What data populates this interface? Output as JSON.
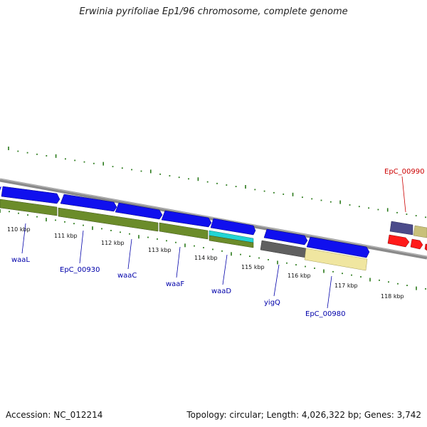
{
  "title": "Erwinia pyrifoliae Ep1/96 chromosome, complete genome",
  "footer": {
    "accession": "Accession: NC_012214",
    "summary": "Topology: circular; Length: 4,026,322 bp; Genes: 3,742"
  },
  "colors": {
    "gene_blue": "#1010ee",
    "gene_olive": "#6b8c2a",
    "gene_cyan": "#22d4d4",
    "gene_gray": "#606060",
    "gene_khaki": "#f0e6a0",
    "gene_red": "#ff1a1a",
    "gene_purple": "#4b4b8a",
    "label_blue": "#0000aa",
    "label_red": "#cc0000",
    "tick_green": "#2a7a1a"
  },
  "ruler": {
    "ticks": [
      {
        "label": "110 kbp"
      },
      {
        "label": "111 kbp"
      },
      {
        "label": "112 kbp"
      },
      {
        "label": "113 kbp"
      },
      {
        "label": "114 kbp"
      },
      {
        "label": "115 kbp"
      },
      {
        "label": "116 kbp"
      },
      {
        "label": "117 kbp"
      },
      {
        "label": "118 kbp"
      }
    ]
  },
  "gene_labels": [
    {
      "text": "waaL"
    },
    {
      "text": "EpC_00930"
    },
    {
      "text": "waaC"
    },
    {
      "text": "waaF"
    },
    {
      "text": "waaD"
    },
    {
      "text": "yigQ"
    },
    {
      "text": "EpC_00980"
    },
    {
      "text": "EpC_00990"
    }
  ]
}
